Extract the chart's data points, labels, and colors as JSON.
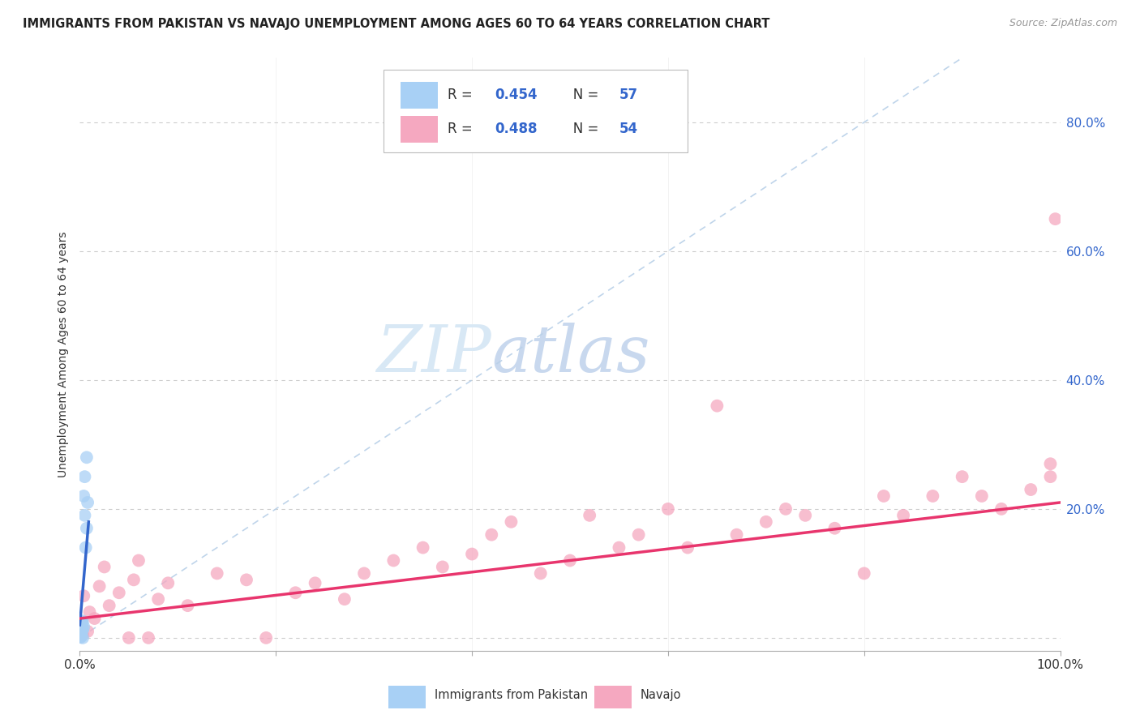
{
  "title": "IMMIGRANTS FROM PAKISTAN VS NAVAJO UNEMPLOYMENT AMONG AGES 60 TO 64 YEARS CORRELATION CHART",
  "source": "Source: ZipAtlas.com",
  "ylabel_label": "Unemployment Among Ages 60 to 64 years",
  "right_ytick_labels": [
    "20.0%",
    "40.0%",
    "60.0%",
    "80.0%"
  ],
  "right_ytick_vals": [
    0.2,
    0.4,
    0.6,
    0.8
  ],
  "blue_color": "#A8D0F5",
  "pink_color": "#F5A8C0",
  "trend_blue": "#3366CC",
  "trend_pink": "#E8356D",
  "diagonal_color": "#B8D0E8",
  "watermark_ZIP_color": "#D8E8F5",
  "watermark_atlas_color": "#C8D8EE",
  "xlim": [
    0.0,
    1.0
  ],
  "ylim": [
    -0.02,
    0.9
  ],
  "pakistan_x": [
    0.0005,
    0.001,
    0.0008,
    0.0015,
    0.002,
    0.001,
    0.0012,
    0.0018,
    0.0005,
    0.001,
    0.0015,
    0.001,
    0.0005,
    0.0008,
    0.0012,
    0.001,
    0.0005,
    0.002,
    0.0015,
    0.001,
    0.0018,
    0.0012,
    0.001,
    0.0005,
    0.0012,
    0.001,
    0.0025,
    0.0018,
    0.0015,
    0.0005,
    0.001,
    0.0015,
    0.002,
    0.001,
    0.0018,
    0.0012,
    0.0005,
    0.001,
    0.0025,
    0.002,
    0.003,
    0.004,
    0.003,
    0.0008,
    0.0015,
    0.0005,
    0.0018,
    0.0025,
    0.0012,
    0.001,
    0.005,
    0.004,
    0.007,
    0.005,
    0.006,
    0.007,
    0.008
  ],
  "pakistan_y": [
    0.005,
    0.008,
    0.01,
    0.002,
    0.012,
    0.006,
    0.007,
    0.015,
    0.003,
    0.009,
    0.018,
    0.004,
    0.002,
    0.02,
    0.011,
    0.007,
    0.001,
    0.022,
    0.013,
    0.008,
    0.016,
    0.009,
    0.005,
    0.003,
    0.01,
    0.007,
    0.024,
    0.015,
    0.012,
    0.002,
    0.006,
    0.011,
    0.019,
    0.008,
    0.014,
    0.009,
    0.003,
    0.007,
    0.026,
    0.021,
    0.012,
    0.017,
    0.0,
    0.005,
    0.015,
    0.004,
    0.018,
    0.023,
    0.013,
    0.009,
    0.25,
    0.22,
    0.28,
    0.19,
    0.14,
    0.17,
    0.21
  ],
  "navajo_x": [
    0.001,
    0.003,
    0.004,
    0.008,
    0.01,
    0.015,
    0.02,
    0.025,
    0.03,
    0.04,
    0.05,
    0.055,
    0.06,
    0.07,
    0.08,
    0.09,
    0.11,
    0.14,
    0.17,
    0.19,
    0.22,
    0.24,
    0.27,
    0.29,
    0.32,
    0.35,
    0.37,
    0.4,
    0.42,
    0.44,
    0.47,
    0.5,
    0.52,
    0.55,
    0.57,
    0.6,
    0.62,
    0.65,
    0.67,
    0.7,
    0.72,
    0.74,
    0.77,
    0.8,
    0.82,
    0.84,
    0.87,
    0.9,
    0.92,
    0.94,
    0.97,
    0.99,
    0.99,
    0.995
  ],
  "navajo_y": [
    0.025,
    0.005,
    0.065,
    0.01,
    0.04,
    0.03,
    0.08,
    0.11,
    0.05,
    0.07,
    0.0,
    0.09,
    0.12,
    0.0,
    0.06,
    0.085,
    0.05,
    0.1,
    0.09,
    0.0,
    0.07,
    0.085,
    0.06,
    0.1,
    0.12,
    0.14,
    0.11,
    0.13,
    0.16,
    0.18,
    0.1,
    0.12,
    0.19,
    0.14,
    0.16,
    0.2,
    0.14,
    0.36,
    0.16,
    0.18,
    0.2,
    0.19,
    0.17,
    0.1,
    0.22,
    0.19,
    0.22,
    0.25,
    0.22,
    0.2,
    0.23,
    0.25,
    0.27,
    0.65
  ],
  "pk_trend_x": [
    0.0,
    0.009
  ],
  "pk_trend_y": [
    0.02,
    0.18
  ],
  "nv_trend_x": [
    0.0,
    1.0
  ],
  "nv_trend_y": [
    0.03,
    0.21
  ]
}
